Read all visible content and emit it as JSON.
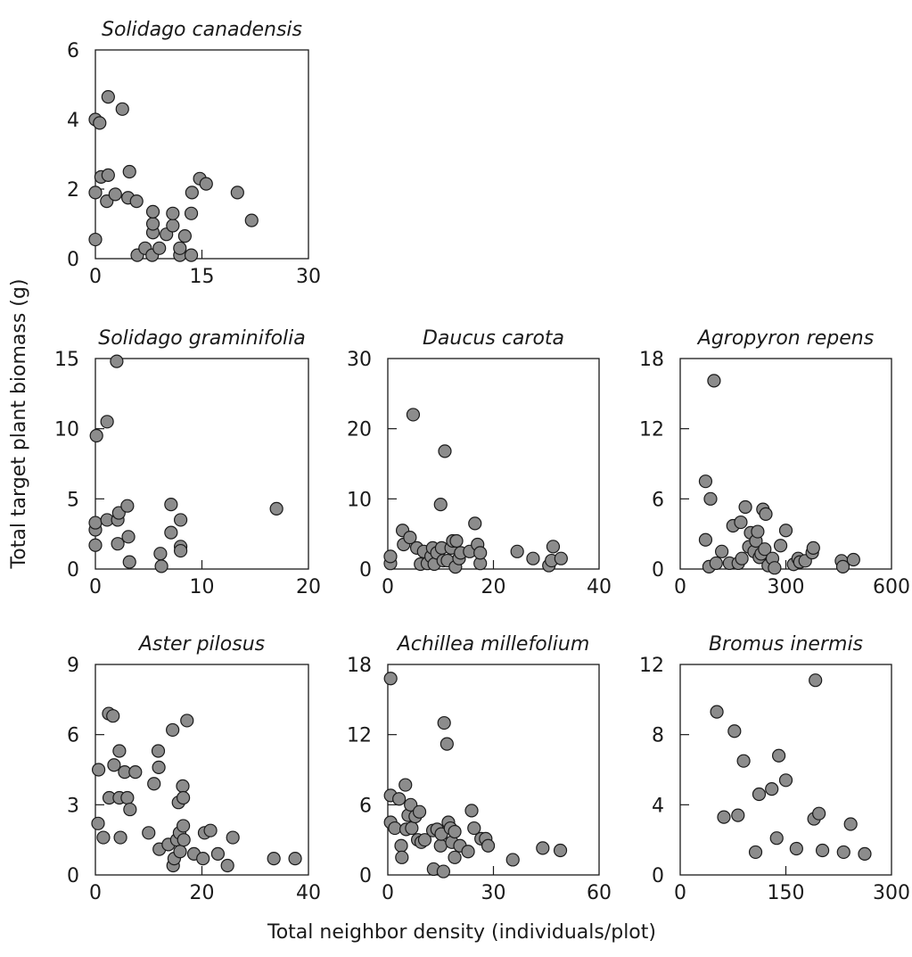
{
  "figure": {
    "ylabel": "Total target plant biomass (g)",
    "xlabel": "Total neighbor density (individuals/plot)"
  },
  "colors": {
    "marker_fill": "#8c8c8c",
    "marker_edge": "#1a1a1a"
  },
  "chart_data": [
    {
      "type": "scatter",
      "title": "Solidago canadensis",
      "xlim": [
        0,
        30
      ],
      "ylim": [
        0,
        6
      ],
      "xticks": [
        0,
        15,
        30
      ],
      "yticks": [
        0,
        2,
        4,
        6
      ],
      "xtick_labels": [
        "0",
        "15",
        "30"
      ],
      "ytick_labels": [
        "0",
        "2",
        "4",
        "6"
      ],
      "points": [
        [
          0,
          0.55
        ],
        [
          0,
          1.9
        ],
        [
          0,
          4.0
        ],
        [
          0.6,
          3.9
        ],
        [
          0.8,
          2.35
        ],
        [
          1.6,
          1.65
        ],
        [
          1.8,
          2.4
        ],
        [
          1.8,
          4.65
        ],
        [
          2.8,
          1.85
        ],
        [
          3.8,
          4.3
        ],
        [
          4.6,
          1.75
        ],
        [
          4.8,
          2.5
        ],
        [
          5.8,
          1.65
        ],
        [
          5.9,
          0.1
        ],
        [
          7.0,
          0.3
        ],
        [
          8.0,
          0.1
        ],
        [
          8.1,
          0.75
        ],
        [
          8.1,
          1.0
        ],
        [
          8.1,
          1.35
        ],
        [
          9.0,
          0.3
        ],
        [
          10.0,
          0.7
        ],
        [
          10.9,
          0.95
        ],
        [
          10.9,
          1.3
        ],
        [
          11.9,
          0.1
        ],
        [
          11.9,
          0.3
        ],
        [
          12.6,
          0.65
        ],
        [
          13.5,
          0.1
        ],
        [
          13.5,
          1.3
        ],
        [
          13.6,
          1.9
        ],
        [
          14.7,
          2.3
        ],
        [
          15.6,
          2.15
        ],
        [
          20.0,
          1.9
        ],
        [
          22.0,
          1.1
        ]
      ]
    },
    {
      "type": "scatter",
      "title": "Solidago graminifolia",
      "xlim": [
        0,
        20
      ],
      "ylim": [
        0,
        15
      ],
      "xticks": [
        0,
        10,
        20
      ],
      "yticks": [
        0,
        5,
        10,
        15
      ],
      "xtick_labels": [
        "0",
        "10",
        "20"
      ],
      "ytick_labels": [
        "0",
        "5",
        "10",
        "15"
      ],
      "points": [
        [
          0,
          1.7
        ],
        [
          0,
          2.8
        ],
        [
          0,
          3.3
        ],
        [
          0.1,
          9.5
        ],
        [
          1.1,
          10.5
        ],
        [
          1.1,
          3.5
        ],
        [
          2.0,
          14.8
        ],
        [
          2.1,
          1.8
        ],
        [
          2.1,
          3.5
        ],
        [
          2.2,
          4.0
        ],
        [
          3.0,
          4.5
        ],
        [
          3.1,
          2.3
        ],
        [
          3.2,
          0.5
        ],
        [
          6.1,
          1.1
        ],
        [
          6.2,
          0.2
        ],
        [
          7.1,
          4.6
        ],
        [
          7.1,
          2.6
        ],
        [
          8.0,
          3.5
        ],
        [
          8.0,
          1.6
        ],
        [
          8.0,
          1.3
        ],
        [
          17.0,
          4.3
        ]
      ]
    },
    {
      "type": "scatter",
      "title": "Daucus carota",
      "xlim": [
        0,
        40
      ],
      "ylim": [
        0,
        30
      ],
      "xticks": [
        0,
        20,
        40
      ],
      "yticks": [
        0,
        10,
        20,
        30
      ],
      "xtick_labels": [
        "0",
        "20",
        "40"
      ],
      "ytick_labels": [
        "0",
        "10",
        "20",
        "30"
      ],
      "points": [
        [
          0.5,
          0.8
        ],
        [
          0.5,
          1.8
        ],
        [
          2.8,
          5.5
        ],
        [
          3.0,
          3.5
        ],
        [
          4.2,
          4.5
        ],
        [
          4.8,
          22.0
        ],
        [
          5.5,
          3.0
        ],
        [
          6.2,
          0.7
        ],
        [
          6.8,
          2.5
        ],
        [
          7.5,
          0.8
        ],
        [
          8.2,
          1.8
        ],
        [
          8.5,
          3.0
        ],
        [
          8.8,
          0.7
        ],
        [
          9.3,
          2.3
        ],
        [
          10.0,
          9.2
        ],
        [
          10.2,
          3.0
        ],
        [
          10.5,
          1.2
        ],
        [
          10.8,
          16.8
        ],
        [
          11.3,
          1.2
        ],
        [
          12.0,
          3.0
        ],
        [
          12.3,
          4.0
        ],
        [
          12.8,
          0.3
        ],
        [
          13.0,
          4.0
        ],
        [
          13.5,
          1.5
        ],
        [
          13.8,
          2.3
        ],
        [
          15.5,
          2.5
        ],
        [
          16.5,
          6.5
        ],
        [
          17.0,
          3.5
        ],
        [
          17.5,
          0.8
        ],
        [
          17.5,
          2.3
        ],
        [
          24.5,
          2.5
        ],
        [
          27.5,
          1.5
        ],
        [
          30.5,
          0.5
        ],
        [
          31.0,
          1.2
        ],
        [
          31.3,
          3.2
        ],
        [
          32.8,
          1.5
        ]
      ]
    },
    {
      "type": "scatter",
      "title": "Agropyron repens",
      "xlim": [
        0,
        600
      ],
      "ylim": [
        0,
        18
      ],
      "xticks": [
        0,
        300,
        600
      ],
      "yticks": [
        0,
        6,
        12,
        18
      ],
      "xtick_labels": [
        "0",
        "300",
        "600"
      ],
      "ytick_labels": [
        "0",
        "6",
        "12",
        "18"
      ],
      "points": [
        [
          72,
          7.5
        ],
        [
          72,
          2.5
        ],
        [
          82,
          0.2
        ],
        [
          86,
          6.0
        ],
        [
          96,
          16.1
        ],
        [
          102,
          0.5
        ],
        [
          118,
          1.5
        ],
        [
          140,
          0.5
        ],
        [
          150,
          3.7
        ],
        [
          165,
          0.5
        ],
        [
          172,
          4.0
        ],
        [
          175,
          0.9
        ],
        [
          185,
          5.3
        ],
        [
          195,
          1.9
        ],
        [
          200,
          3.1
        ],
        [
          210,
          1.5
        ],
        [
          215,
          2.4
        ],
        [
          220,
          3.2
        ],
        [
          225,
          1.0
        ],
        [
          230,
          1.3
        ],
        [
          235,
          5.1
        ],
        [
          240,
          1.7
        ],
        [
          243,
          4.7
        ],
        [
          250,
          0.3
        ],
        [
          262,
          0.9
        ],
        [
          268,
          0.1
        ],
        [
          285,
          2.0
        ],
        [
          300,
          3.3
        ],
        [
          322,
          0.4
        ],
        [
          335,
          0.9
        ],
        [
          340,
          0.6
        ],
        [
          355,
          0.7
        ],
        [
          375,
          1.4
        ],
        [
          378,
          1.8
        ],
        [
          458,
          0.7
        ],
        [
          462,
          0.2
        ],
        [
          492,
          0.8
        ]
      ]
    },
    {
      "type": "scatter",
      "title": "Aster pilosus",
      "xlim": [
        0,
        40
      ],
      "ylim": [
        0,
        9
      ],
      "xticks": [
        0,
        20,
        40
      ],
      "yticks": [
        0,
        3,
        6,
        9
      ],
      "xtick_labels": [
        "0",
        "20",
        "40"
      ],
      "ytick_labels": [
        "0",
        "3",
        "6",
        "9"
      ],
      "points": [
        [
          0.5,
          2.2
        ],
        [
          0.6,
          4.5
        ],
        [
          1.5,
          1.6
        ],
        [
          2.5,
          6.9
        ],
        [
          2.6,
          3.3
        ],
        [
          3.3,
          6.8
        ],
        [
          3.5,
          4.7
        ],
        [
          4.5,
          5.3
        ],
        [
          4.5,
          3.3
        ],
        [
          4.7,
          1.6
        ],
        [
          5.5,
          4.4
        ],
        [
          6.0,
          3.3
        ],
        [
          6.5,
          2.8
        ],
        [
          7.5,
          4.4
        ],
        [
          10.0,
          1.8
        ],
        [
          11.0,
          3.9
        ],
        [
          11.8,
          5.3
        ],
        [
          11.9,
          4.6
        ],
        [
          12.0,
          1.1
        ],
        [
          13.7,
          1.3
        ],
        [
          14.5,
          6.2
        ],
        [
          14.6,
          0.4
        ],
        [
          14.8,
          0.7
        ],
        [
          15.3,
          1.5
        ],
        [
          15.6,
          3.1
        ],
        [
          15.8,
          1.8
        ],
        [
          15.9,
          1.0
        ],
        [
          16.4,
          3.8
        ],
        [
          16.5,
          3.3
        ],
        [
          16.5,
          2.1
        ],
        [
          16.6,
          1.5
        ],
        [
          17.2,
          6.6
        ],
        [
          18.5,
          0.9
        ],
        [
          20.2,
          0.7
        ],
        [
          20.5,
          1.8
        ],
        [
          21.6,
          1.9
        ],
        [
          23.0,
          0.9
        ],
        [
          24.8,
          0.4
        ],
        [
          25.8,
          1.6
        ],
        [
          33.5,
          0.7
        ],
        [
          37.5,
          0.7
        ]
      ]
    },
    {
      "type": "scatter",
      "title": "Achillea millefolium",
      "xlim": [
        0,
        60
      ],
      "ylim": [
        0,
        18
      ],
      "xticks": [
        0,
        30,
        60
      ],
      "yticks": [
        0,
        6,
        12,
        18
      ],
      "xtick_labels": [
        "0",
        "30",
        "60"
      ],
      "ytick_labels": [
        "0",
        "6",
        "12",
        "18"
      ],
      "points": [
        [
          0.8,
          16.8
        ],
        [
          0.8,
          6.8
        ],
        [
          0.8,
          4.5
        ],
        [
          2.0,
          4.0
        ],
        [
          3.2,
          6.5
        ],
        [
          3.8,
          2.5
        ],
        [
          4.0,
          1.5
        ],
        [
          5.0,
          7.7
        ],
        [
          5.2,
          3.9
        ],
        [
          5.8,
          5.1
        ],
        [
          6.5,
          6.0
        ],
        [
          6.8,
          4.0
        ],
        [
          7.8,
          5.0
        ],
        [
          8.5,
          3.0
        ],
        [
          9.0,
          5.4
        ],
        [
          9.5,
          2.8
        ],
        [
          10.5,
          3.0
        ],
        [
          12.8,
          3.8
        ],
        [
          13.0,
          0.5
        ],
        [
          14.0,
          3.9
        ],
        [
          15.0,
          2.5
        ],
        [
          15.2,
          3.5
        ],
        [
          15.8,
          0.3
        ],
        [
          16.0,
          13.0
        ],
        [
          16.8,
          11.2
        ],
        [
          17.2,
          4.5
        ],
        [
          17.8,
          4.0
        ],
        [
          18.2,
          2.8
        ],
        [
          19.0,
          1.5
        ],
        [
          19.0,
          3.7
        ],
        [
          20.5,
          2.5
        ],
        [
          22.8,
          2.0
        ],
        [
          23.8,
          5.5
        ],
        [
          24.5,
          4.0
        ],
        [
          26.5,
          3.1
        ],
        [
          27.8,
          3.1
        ],
        [
          28.5,
          2.5
        ],
        [
          35.5,
          1.3
        ],
        [
          44.0,
          2.3
        ],
        [
          49.0,
          2.1
        ]
      ]
    },
    {
      "type": "scatter",
      "title": "Bromus inermis",
      "xlim": [
        0,
        300
      ],
      "ylim": [
        0,
        12
      ],
      "xticks": [
        0,
        150,
        300
      ],
      "yticks": [
        0,
        4,
        8,
        12
      ],
      "xtick_labels": [
        "0",
        "150",
        "300"
      ],
      "ytick_labels": [
        "0",
        "4",
        "8",
        "12"
      ],
      "points": [
        [
          52,
          9.3
        ],
        [
          62,
          3.3
        ],
        [
          77,
          8.2
        ],
        [
          82,
          3.4
        ],
        [
          90,
          6.5
        ],
        [
          107,
          1.3
        ],
        [
          112,
          4.6
        ],
        [
          130,
          4.9
        ],
        [
          137,
          2.1
        ],
        [
          140,
          6.8
        ],
        [
          150,
          5.4
        ],
        [
          165,
          1.5
        ],
        [
          190,
          3.2
        ],
        [
          192,
          11.1
        ],
        [
          197,
          3.5
        ],
        [
          202,
          1.4
        ],
        [
          232,
          1.3
        ],
        [
          242,
          2.9
        ],
        [
          262,
          1.2
        ]
      ]
    }
  ]
}
